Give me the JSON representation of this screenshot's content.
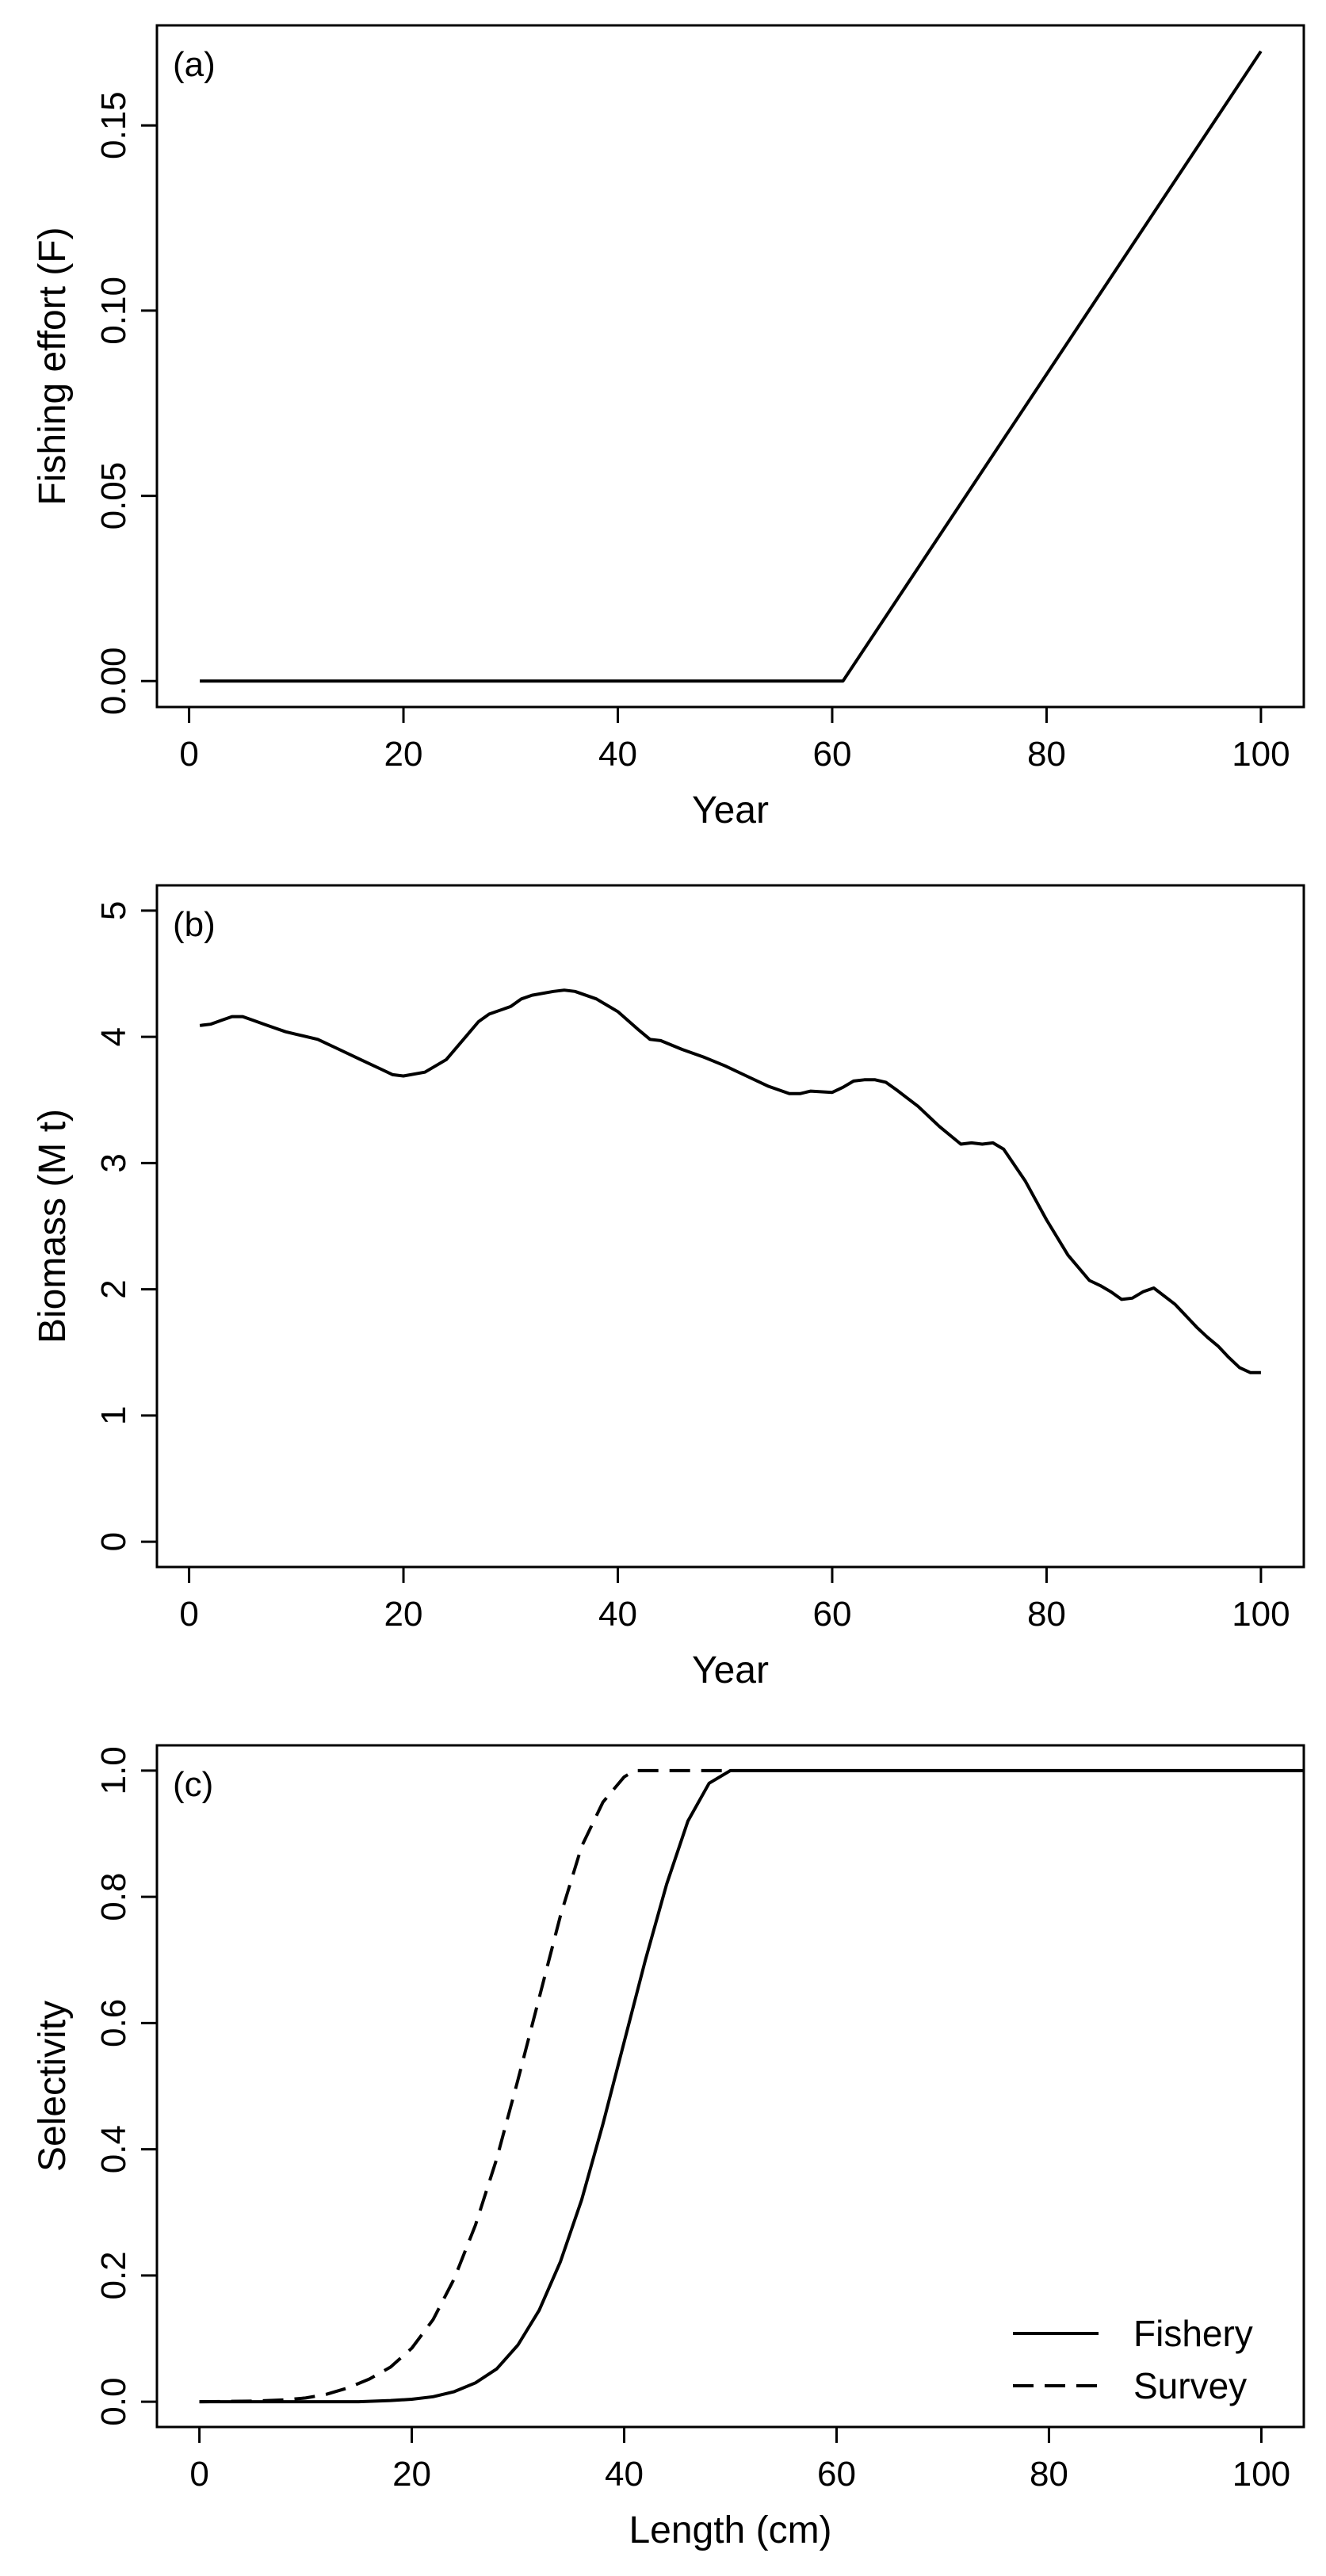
{
  "chart_data": [
    {
      "type": "line",
      "panel_label": "(a)",
      "xlabel": "Year",
      "ylabel": "Fishing effort (F)",
      "xlim": [
        -3,
        104
      ],
      "ylim": [
        -0.007,
        0.177
      ],
      "xticks": [
        0,
        20,
        40,
        60,
        80,
        100
      ],
      "xtick_labels": [
        "0",
        "20",
        "40",
        "60",
        "80",
        "100"
      ],
      "yticks": [
        0,
        0.05,
        0.1,
        0.15
      ],
      "ytick_labels": [
        "0.00",
        "0.05",
        "0.10",
        "0.15"
      ],
      "grid": false,
      "series": [
        {
          "style": "solid",
          "x": [
            1,
            61,
            100
          ],
          "y": [
            0,
            0,
            0.17
          ]
        }
      ]
    },
    {
      "type": "line",
      "panel_label": "(b)",
      "xlabel": "Year",
      "ylabel": "Biomass (M t)",
      "xlim": [
        -3,
        104
      ],
      "ylim": [
        -0.2,
        5.2
      ],
      "xticks": [
        0,
        20,
        40,
        60,
        80,
        100
      ],
      "xtick_labels": [
        "0",
        "20",
        "40",
        "60",
        "80",
        "100"
      ],
      "yticks": [
        0,
        1,
        2,
        3,
        4,
        5
      ],
      "ytick_labels": [
        "0",
        "1",
        "2",
        "3",
        "4",
        "5"
      ],
      "grid": false,
      "series": [
        {
          "style": "solid",
          "x": [
            1,
            2,
            3,
            4,
            5,
            6,
            7,
            8,
            9,
            10,
            12,
            14,
            16,
            18,
            19,
            20,
            22,
            24,
            26,
            27,
            28,
            30,
            31,
            32,
            34,
            35,
            36,
            38,
            40,
            42,
            43,
            44,
            46,
            48,
            50,
            52,
            54,
            56,
            57,
            58,
            60,
            61,
            62,
            63,
            64,
            65,
            66,
            68,
            70,
            72,
            73,
            74,
            75,
            76,
            78,
            80,
            82,
            84,
            85,
            86,
            87,
            88,
            89,
            90,
            92,
            94,
            95,
            96,
            97,
            98,
            99,
            100
          ],
          "y": [
            4.09,
            4.1,
            4.13,
            4.16,
            4.16,
            4.13,
            4.1,
            4.07,
            4.04,
            4.02,
            3.98,
            3.9,
            3.82,
            3.74,
            3.7,
            3.69,
            3.72,
            3.82,
            4.02,
            4.12,
            4.18,
            4.24,
            4.3,
            4.33,
            4.36,
            4.37,
            4.36,
            4.3,
            4.2,
            4.05,
            3.98,
            3.97,
            3.9,
            3.84,
            3.77,
            3.69,
            3.61,
            3.55,
            3.55,
            3.57,
            3.56,
            3.6,
            3.65,
            3.66,
            3.66,
            3.64,
            3.58,
            3.45,
            3.29,
            3.15,
            3.16,
            3.15,
            3.16,
            3.11,
            2.86,
            2.55,
            2.27,
            2.07,
            2.03,
            1.98,
            1.92,
            1.93,
            1.98,
            2.01,
            1.88,
            1.7,
            1.62,
            1.55,
            1.46,
            1.38,
            1.34,
            1.34
          ]
        }
      ]
    },
    {
      "type": "line",
      "panel_label": "(c)",
      "xlabel": "Length (cm)",
      "ylabel": "Selectivity",
      "xlim": [
        -4,
        104
      ],
      "ylim": [
        -0.04,
        1.04
      ],
      "xticks": [
        0,
        20,
        40,
        60,
        80,
        100
      ],
      "xtick_labels": [
        "0",
        "20",
        "40",
        "60",
        "80",
        "100"
      ],
      "yticks": [
        0,
        0.2,
        0.4,
        0.6,
        0.8,
        1.0
      ],
      "ytick_labels": [
        "0.0",
        "0.2",
        "0.4",
        "0.6",
        "0.8",
        "1.0"
      ],
      "grid": false,
      "legend": {
        "placement": "bottom-right",
        "entries": [
          "Fishery",
          "Survey"
        ]
      },
      "series": [
        {
          "name": "Fishery",
          "style": "solid",
          "x": [
            0,
            5,
            10,
            15,
            18,
            20,
            22,
            24,
            26,
            28,
            30,
            32,
            34,
            36,
            38,
            40,
            42,
            44,
            46,
            48,
            50,
            52,
            60,
            80,
            104
          ],
          "y": [
            0,
            0,
            0,
            0,
            0.002,
            0.004,
            0.008,
            0.016,
            0.03,
            0.052,
            0.09,
            0.145,
            0.222,
            0.32,
            0.44,
            0.57,
            0.7,
            0.82,
            0.92,
            0.98,
            1,
            1,
            1,
            1,
            1
          ]
        },
        {
          "name": "Survey",
          "style": "dashed",
          "x": [
            0,
            5,
            8,
            10,
            12,
            14,
            16,
            18,
            20,
            22,
            24,
            26,
            28,
            30,
            32,
            34,
            36,
            38,
            40,
            41,
            42,
            44,
            50
          ],
          "y": [
            0,
            0.001,
            0.003,
            0.006,
            0.012,
            0.022,
            0.036,
            0.055,
            0.085,
            0.13,
            0.195,
            0.28,
            0.385,
            0.51,
            0.64,
            0.77,
            0.88,
            0.95,
            0.99,
            1,
            1,
            1,
            1
          ]
        }
      ]
    }
  ]
}
